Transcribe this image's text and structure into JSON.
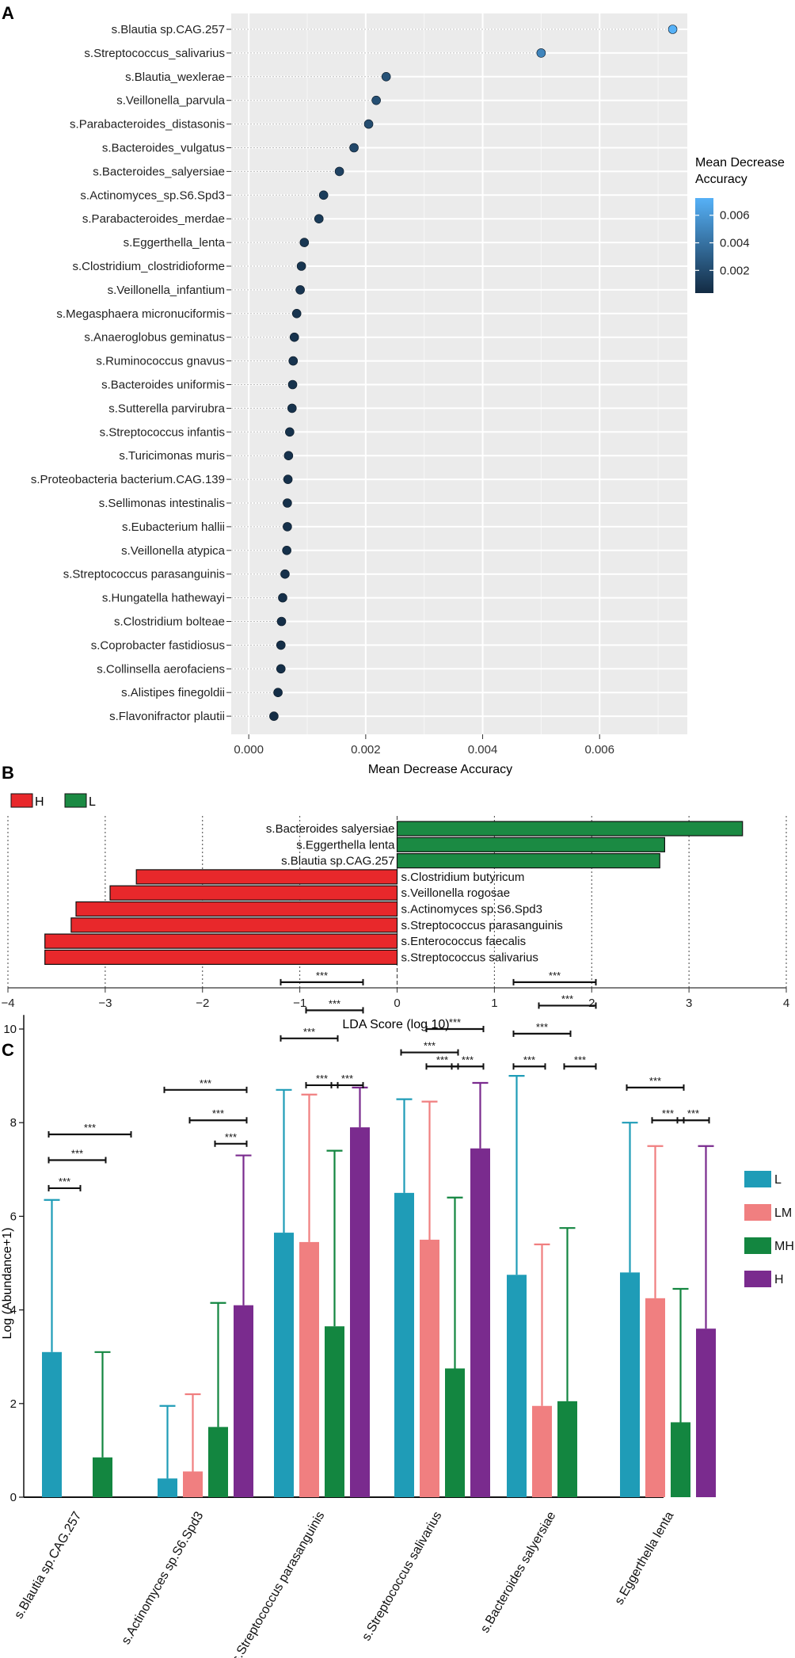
{
  "colors": {
    "panel_bg": "#EBEBEB",
    "grid": "#FFFFFF",
    "dot_low": "#132B43",
    "dot_high": "#56B1F7",
    "lda_H": "#E8282B",
    "lda_L": "#1B8A43",
    "grp_L": "#1F9CB7",
    "grp_LM": "#F07F80",
    "grp_MH": "#138640",
    "grp_H": "#7A2B8E"
  },
  "chart_data": [
    {
      "panel_label": "A",
      "type": "scatter",
      "subtype": "dot-plot",
      "xlabel": "Mean Decrease Accuracy",
      "ylabel": "",
      "xlim": [
        -0.0003,
        0.0075
      ],
      "xticks": [
        "0.000",
        "0.002",
        "0.004",
        "0.006"
      ],
      "xtick_values": [
        0,
        0.002,
        0.004,
        0.006
      ],
      "grid": true,
      "legend": {
        "title_line1": "Mean Decrease",
        "title_line2": "Accuracy",
        "placement": "right",
        "range": [
          0.00035,
          0.00725
        ],
        "labels": [
          "0.006",
          "0.004",
          "0.002"
        ],
        "label_values": [
          0.006,
          0.004,
          0.002
        ]
      },
      "categories": [
        "s.Blautia sp.CAG.257",
        "s.Streptococcus_salivarius",
        "s.Blautia_wexlerae",
        "s.Veillonella_parvula",
        "s.Parabacteroides_distasonis",
        "s.Bacteroides_vulgatus",
        "s.Bacteroides_salyersiae",
        "s.Actinomyces_sp.S6.Spd3",
        "s.Parabacteroides_merdae",
        "s.Eggerthella_lenta",
        "s.Clostridium_clostridioforme",
        "s.Veillonella_infantium",
        "s.Megasphaera micronuciformis",
        "s.Anaeroglobus geminatus",
        "s.Ruminococcus gnavus",
        "s.Bacteroides uniformis",
        "s.Sutterella parvirubra",
        "s.Streptococcus infantis",
        "s.Turicimonas muris",
        "s.Proteobacteria bacterium.CAG.139",
        "s.Sellimonas intestinalis",
        "s.Eubacterium hallii",
        "s.Veillonella atypica",
        "s.Streptococcus parasanguinis",
        "s.Hungatella hathewayi",
        "s.Clostridium bolteae",
        "s.Coprobacter fastidiosus",
        "s.Collinsella aerofaciens",
        "s.Alistipes finegoldii",
        "s.Flavonifractor plautii"
      ],
      "values": [
        0.00725,
        0.005,
        0.00235,
        0.00218,
        0.00205,
        0.0018,
        0.00155,
        0.00128,
        0.0012,
        0.00095,
        0.0009,
        0.00088,
        0.00082,
        0.00078,
        0.00076,
        0.00075,
        0.00074,
        0.0007,
        0.00068,
        0.00067,
        0.00066,
        0.00066,
        0.00065,
        0.00062,
        0.00058,
        0.00056,
        0.00055,
        0.00055,
        0.0005,
        0.00043
      ]
    },
    {
      "panel_label": "B",
      "type": "bar",
      "orientation": "horizontal",
      "xlabel": "LDA Score (log 10)",
      "xlim": [
        -4,
        4
      ],
      "xticks": [
        "−4",
        "−3",
        "−2",
        "−1",
        "0",
        "1",
        "2",
        "3",
        "4"
      ],
      "xtick_values": [
        -4,
        -3,
        -2,
        -1,
        0,
        1,
        2,
        3,
        4
      ],
      "legend": [
        {
          "name": "H",
          "color": "#E8282B"
        },
        {
          "name": "L",
          "color": "#1B8A43"
        }
      ],
      "series": [
        {
          "category": "s.Bacteroides salyersiae",
          "value": 3.55,
          "group": "L"
        },
        {
          "category": "s.Eggerthella lenta",
          "value": 2.75,
          "group": "L"
        },
        {
          "category": "s.Blautia sp.CAG.257",
          "value": 2.7,
          "group": "L"
        },
        {
          "category": "s.Clostridium butyricum",
          "value": -2.68,
          "group": "H"
        },
        {
          "category": "s.Veillonella rogosae",
          "value": -2.95,
          "group": "H"
        },
        {
          "category": "s.Actinomyces sp.S6.Spd3",
          "value": -3.3,
          "group": "H"
        },
        {
          "category": "s.Streptococcus parasanguinis",
          "value": -3.35,
          "group": "H"
        },
        {
          "category": "s.Enterococcus faecalis",
          "value": -3.62,
          "group": "H"
        },
        {
          "category": "s.Streptococcus salivarius",
          "value": -3.62,
          "group": "H"
        }
      ]
    },
    {
      "panel_label": "C",
      "type": "bar",
      "subtype": "grouped-with-errorbars",
      "ylabel": "Log (Abundance+1)",
      "xlabel": "",
      "ylim": [
        0,
        11
      ],
      "yticks": [
        "0",
        "2",
        "4",
        "6",
        "8",
        "10"
      ],
      "ytick_values": [
        0,
        2,
        4,
        6,
        8,
        10
      ],
      "sig_label": "***",
      "categories": [
        "s.Blautia sp.CAG.257",
        "s.Actinomyces sp.S6.Spd3",
        "s.Streptococcus parasanguinis",
        "s.Streptococcus salivarius",
        "s.Bacteroides salyersiae",
        "s.Eggerthella lenta"
      ],
      "series": [
        {
          "name": "L",
          "color": "#1F9CB7",
          "values": [
            3.1,
            0.4,
            5.65,
            6.5,
            4.75,
            4.8
          ],
          "upper": [
            6.35,
            1.95,
            8.7,
            8.5,
            9.0,
            8.0
          ]
        },
        {
          "name": "LM",
          "color": "#F07F80",
          "values": [
            0,
            0.55,
            5.45,
            5.5,
            1.95,
            4.25
          ],
          "upper": [
            0,
            2.2,
            8.6,
            8.45,
            5.4,
            7.5
          ]
        },
        {
          "name": "MH",
          "color": "#138640",
          "values": [
            0.85,
            1.5,
            3.65,
            2.75,
            2.05,
            1.6
          ],
          "upper": [
            3.1,
            4.15,
            7.4,
            6.4,
            5.75,
            4.45
          ]
        },
        {
          "name": "H",
          "color": "#7A2B8E",
          "values": [
            0,
            4.1,
            7.9,
            7.45,
            0,
            3.6
          ],
          "upper": [
            0,
            7.3,
            8.75,
            8.85,
            0,
            7.5
          ]
        }
      ],
      "comparisons": [
        {
          "cat": 0,
          "g1": 0,
          "g2": 1,
          "level": 6.6
        },
        {
          "cat": 0,
          "g1": 0,
          "g2": 2,
          "level": 7.2
        },
        {
          "cat": 0,
          "g1": 0,
          "g2": 3,
          "level": 7.75
        },
        {
          "cat": 1,
          "g1": 2,
          "g2": 3,
          "level": 7.55
        },
        {
          "cat": 1,
          "g1": 1,
          "g2": 3,
          "level": 8.05
        },
        {
          "cat": 1,
          "g1": 0,
          "g2": 3,
          "level": 8.7
        },
        {
          "cat": 2,
          "g1": 1,
          "g2": 2,
          "level": 8.8
        },
        {
          "cat": 2,
          "g1": 2,
          "g2": 3,
          "level": 8.8
        },
        {
          "cat": 2,
          "g1": 0,
          "g2": 2,
          "level": 9.8
        },
        {
          "cat": 2,
          "g1": 1,
          "g2": 3,
          "level": 10.4
        },
        {
          "cat": 2,
          "g1": 0,
          "g2": 3,
          "level": 11.0
        },
        {
          "cat": 3,
          "g1": 1,
          "g2": 2,
          "level": 9.2
        },
        {
          "cat": 3,
          "g1": 2,
          "g2": 3,
          "level": 9.2
        },
        {
          "cat": 3,
          "g1": 0,
          "g2": 2,
          "level": 9.5
        },
        {
          "cat": 3,
          "g1": 1,
          "g2": 3,
          "level": 10.0
        },
        {
          "cat": 4,
          "g1": 0,
          "g2": 1,
          "level": 9.2
        },
        {
          "cat": 4,
          "g1": 2,
          "g2": 3,
          "level": 9.2
        },
        {
          "cat": 4,
          "g1": 0,
          "g2": 2,
          "level": 9.9
        },
        {
          "cat": 4,
          "g1": 1,
          "g2": 3,
          "level": 10.5
        },
        {
          "cat": 4,
          "g1": 0,
          "g2": 3,
          "level": 11.0
        },
        {
          "cat": 5,
          "g1": 1,
          "g2": 2,
          "level": 8.05
        },
        {
          "cat": 5,
          "g1": 2,
          "g2": 3,
          "level": 8.05
        },
        {
          "cat": 5,
          "g1": 0,
          "g2": 2,
          "level": 8.75
        }
      ]
    }
  ]
}
